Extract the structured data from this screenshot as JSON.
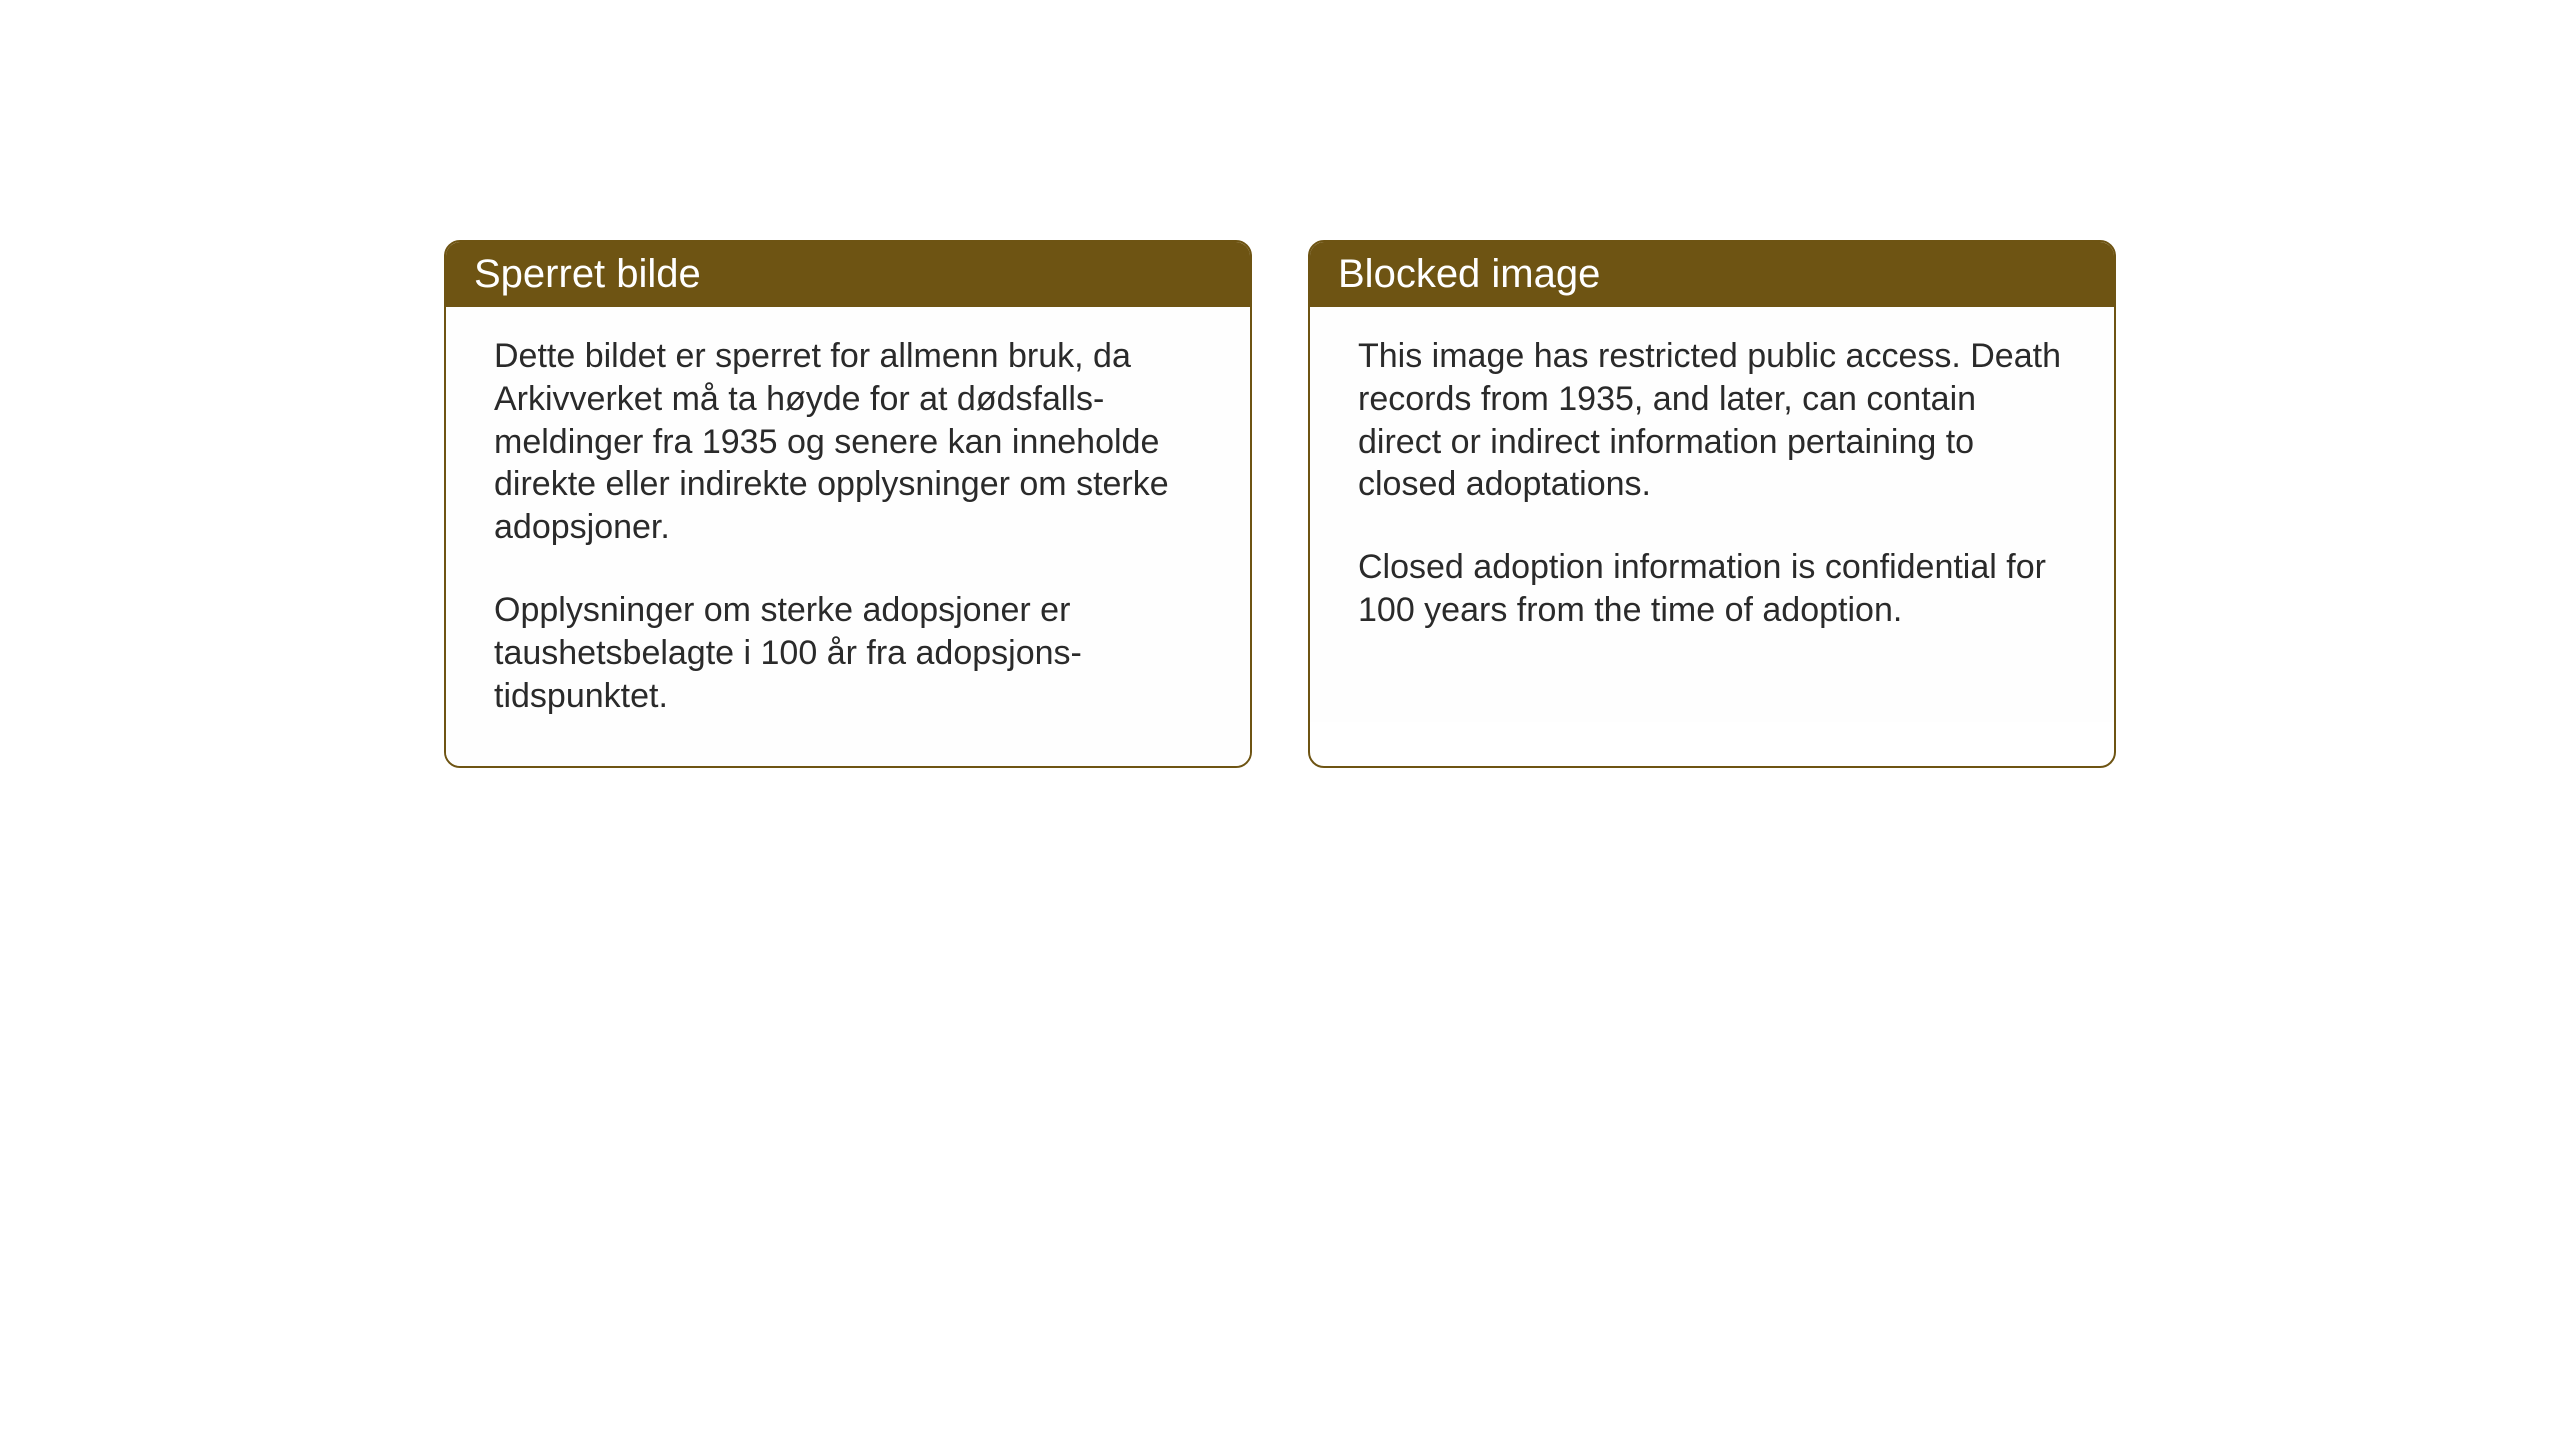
{
  "cards": {
    "norwegian": {
      "title": "Sperret bilde",
      "paragraph1": "Dette bildet er sperret for allmenn bruk, da Arkivverket må ta høyde for at dødsfalls-meldinger fra 1935 og senere kan inneholde direkte eller indirekte opplysninger om sterke adopsjoner.",
      "paragraph2": "Opplysninger om sterke adopsjoner er taushetsbelagte i 100 år fra adopsjons-tidspunktet."
    },
    "english": {
      "title": "Blocked image",
      "paragraph1": "This image has restricted public access. Death records from 1935, and later, can contain direct or indirect information pertaining to closed adoptations.",
      "paragraph2": "Closed adoption information is confidential for 100 years from the time of adoption."
    }
  },
  "styling": {
    "header_background_color": "#6e5413",
    "header_text_color": "#ffffff",
    "border_color": "#6e5413",
    "body_text_color": "#2a2a2a",
    "card_background_color": "#ffffff",
    "page_background_color": "#ffffff",
    "header_fontsize": 40,
    "body_fontsize": 34,
    "border_radius": 16,
    "border_width": 2
  }
}
